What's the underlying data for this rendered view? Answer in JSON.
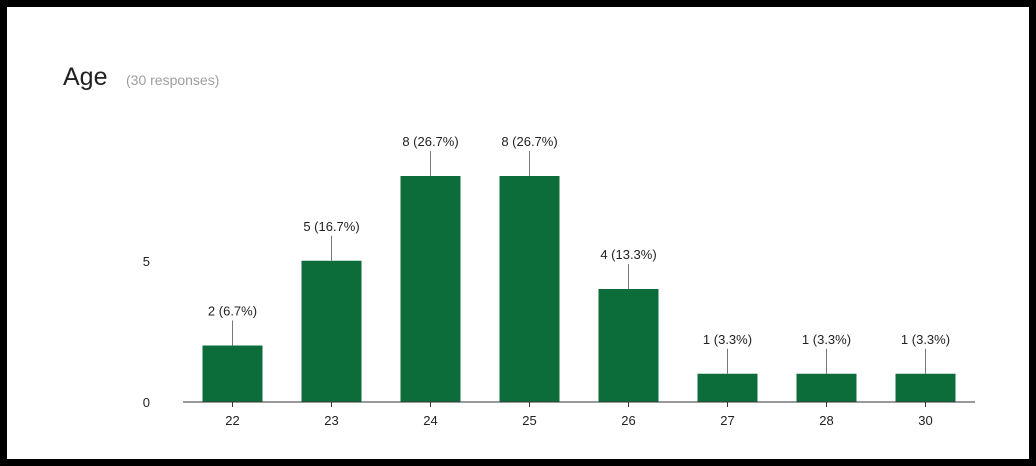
{
  "title": "Age",
  "subtitle": "(30 responses)",
  "colors": {
    "bar": "#0d6d3a",
    "axis": "#333333",
    "leader": "#777777"
  },
  "chart_data": {
    "type": "bar",
    "title": "Age",
    "subtitle": "(30 responses)",
    "categories": [
      "22",
      "23",
      "24",
      "25",
      "26",
      "27",
      "28",
      "30"
    ],
    "values": [
      2,
      5,
      8,
      8,
      4,
      1,
      1,
      1
    ],
    "data_labels": [
      "2 (6.7%)",
      "5 (16.7%)",
      "8 (26.7%)",
      "8 (26.7%)",
      "4 (13.3%)",
      "1 (3.3%)",
      "1 (3.3%)",
      "1 (3.3%)"
    ],
    "y_ticks": [
      0,
      5
    ],
    "ylim": [
      0,
      8
    ],
    "xlabel": "",
    "ylabel": "",
    "grid": false,
    "legend": "none"
  }
}
